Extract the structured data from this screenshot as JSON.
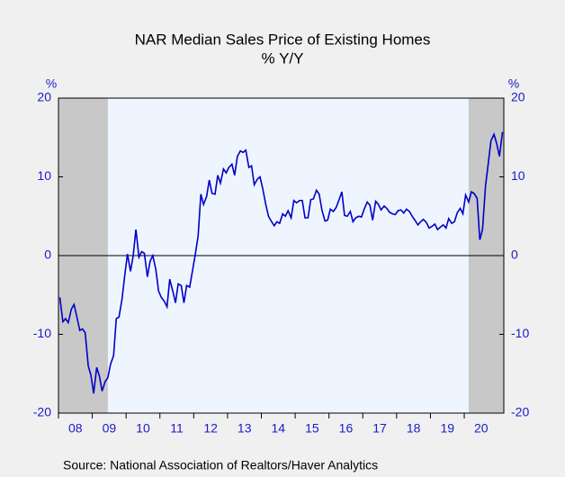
{
  "chart_data": {
    "type": "line",
    "title": "NAR Median Sales Price of Existing Homes",
    "subtitle": "% Y/Y",
    "ylabel": "%",
    "y2label": "%",
    "source": "Source:  National Association of Realtors/Haver Analytics",
    "xlim": [
      2008,
      2021.17
    ],
    "xticks": [
      {
        "value": 2008,
        "label": "08"
      },
      {
        "value": 2009,
        "label": "09"
      },
      {
        "value": 2010,
        "label": "10"
      },
      {
        "value": 2011,
        "label": "11"
      },
      {
        "value": 2012,
        "label": "12"
      },
      {
        "value": 2013,
        "label": "13"
      },
      {
        "value": 2014,
        "label": "14"
      },
      {
        "value": 2015,
        "label": "15"
      },
      {
        "value": 2016,
        "label": "16"
      },
      {
        "value": 2017,
        "label": "17"
      },
      {
        "value": 2018,
        "label": "18"
      },
      {
        "value": 2019,
        "label": "19"
      },
      {
        "value": 2020,
        "label": "20"
      }
    ],
    "ylim": [
      -20,
      20
    ],
    "yticks": [
      -20,
      -10,
      0,
      10,
      20
    ],
    "y2lim": [
      -20,
      20
    ],
    "y2ticks": [
      -20,
      -10,
      0,
      10,
      20
    ],
    "recessions": [
      [
        2008,
        2009.46
      ],
      [
        2020.13,
        2021.17
      ]
    ],
    "recession_color": "#c8c8c8",
    "zero_line": true,
    "x": [
      2008.04,
      2008.13,
      2008.21,
      2008.29,
      2008.38,
      2008.46,
      2008.54,
      2008.63,
      2008.71,
      2008.79,
      2008.88,
      2008.96,
      2009.04,
      2009.13,
      2009.21,
      2009.29,
      2009.38,
      2009.46,
      2009.54,
      2009.63,
      2009.71,
      2009.79,
      2009.88,
      2009.96,
      2010.04,
      2010.13,
      2010.21,
      2010.29,
      2010.38,
      2010.46,
      2010.54,
      2010.63,
      2010.71,
      2010.79,
      2010.88,
      2010.96,
      2011.04,
      2011.13,
      2011.21,
      2011.29,
      2011.38,
      2011.46,
      2011.54,
      2011.63,
      2011.71,
      2011.79,
      2011.88,
      2011.96,
      2012.04,
      2012.13,
      2012.21,
      2012.29,
      2012.38,
      2012.46,
      2012.54,
      2012.63,
      2012.71,
      2012.79,
      2012.88,
      2012.96,
      2013.04,
      2013.13,
      2013.21,
      2013.29,
      2013.38,
      2013.46,
      2013.54,
      2013.63,
      2013.71,
      2013.79,
      2013.88,
      2013.96,
      2014.04,
      2014.13,
      2014.21,
      2014.29,
      2014.38,
      2014.46,
      2014.54,
      2014.63,
      2014.71,
      2014.79,
      2014.88,
      2014.96,
      2015.04,
      2015.13,
      2015.21,
      2015.29,
      2015.38,
      2015.46,
      2015.54,
      2015.63,
      2015.71,
      2015.79,
      2015.88,
      2015.96,
      2016.04,
      2016.13,
      2016.21,
      2016.29,
      2016.38,
      2016.46,
      2016.54,
      2016.63,
      2016.71,
      2016.79,
      2016.88,
      2016.96,
      2017.04,
      2017.13,
      2017.21,
      2017.29,
      2017.38,
      2017.46,
      2017.54,
      2017.63,
      2017.71,
      2017.79,
      2017.88,
      2017.96,
      2018.04,
      2018.13,
      2018.21,
      2018.29,
      2018.38,
      2018.46,
      2018.54,
      2018.63,
      2018.71,
      2018.79,
      2018.88,
      2018.96,
      2019.04,
      2019.13,
      2019.21,
      2019.29,
      2019.38,
      2019.46,
      2019.54,
      2019.63,
      2019.71,
      2019.79,
      2019.88,
      2019.96,
      2020.04,
      2020.13,
      2020.21,
      2020.29,
      2020.38,
      2020.46,
      2020.54,
      2020.63,
      2020.71,
      2020.79,
      2020.88,
      2020.96,
      2021.04,
      2021.13
    ],
    "series": [
      {
        "color": "#0000c8",
        "values": [
          -5.3,
          -8.4,
          -8.0,
          -8.5,
          -6.8,
          -6.2,
          -7.7,
          -9.5,
          -9.3,
          -9.8,
          -14.0,
          -15.2,
          -17.5,
          -14.2,
          -15.3,
          -17.2,
          -16.0,
          -15.5,
          -13.8,
          -12.7,
          -8.0,
          -7.8,
          -5.5,
          -2.5,
          0.2,
          -2.0,
          0.0,
          3.3,
          -0.2,
          0.5,
          0.3,
          -2.7,
          -0.7,
          0.0,
          -1.8,
          -4.5,
          -5.3,
          -5.8,
          -6.5,
          -3.0,
          -4.5,
          -6.0,
          -3.6,
          -3.8,
          -6.0,
          -3.8,
          -4.0,
          -2.0,
          0.0,
          2.5,
          7.8,
          6.5,
          7.5,
          9.6,
          7.9,
          7.8,
          10.2,
          9.2,
          11.0,
          10.5,
          11.2,
          11.6,
          10.2,
          12.6,
          13.3,
          13.1,
          13.4,
          11.2,
          11.4,
          9.0,
          9.7,
          10.0,
          8.5,
          6.5,
          5.0,
          4.4,
          3.8,
          4.3,
          4.1,
          5.3,
          5.0,
          5.7,
          4.8,
          7.0,
          6.7,
          7.0,
          7.0,
          4.8,
          4.8,
          7.1,
          7.2,
          8.3,
          7.8,
          5.8,
          4.4,
          4.5,
          5.9,
          5.6,
          6.1,
          7.0,
          8.1,
          5.1,
          5.0,
          5.6,
          4.3,
          4.8,
          5.0,
          4.9,
          5.9,
          6.8,
          6.4,
          4.5,
          6.9,
          6.5,
          5.8,
          6.3,
          6.0,
          5.5,
          5.3,
          5.2,
          5.7,
          5.8,
          5.4,
          5.9,
          5.6,
          5.0,
          4.5,
          3.9,
          4.3,
          4.6,
          4.2,
          3.5,
          3.7,
          4.0,
          3.3,
          3.6,
          3.9,
          3.5,
          4.7,
          4.1,
          4.3,
          5.4,
          6.0,
          5.3,
          7.7,
          6.8,
          8.1,
          7.9,
          7.3,
          2.0,
          3.3,
          8.9,
          11.7,
          14.6,
          15.4,
          14.2,
          12.6,
          15.7
        ]
      }
    ]
  }
}
